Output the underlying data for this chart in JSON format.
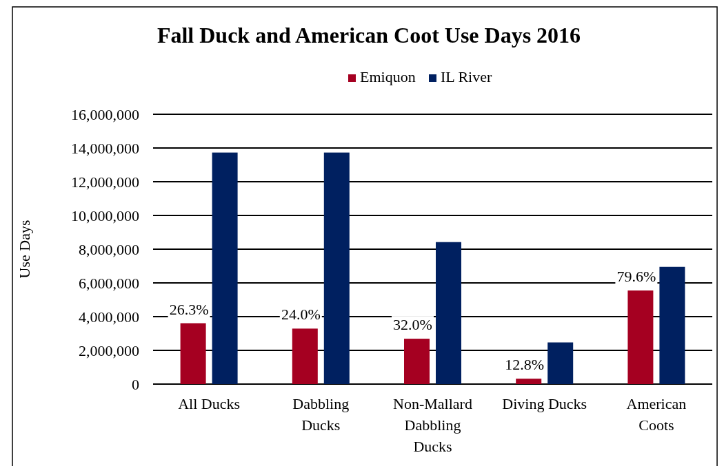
{
  "chart_data": {
    "type": "bar",
    "title": "Fall Duck and American Coot Use Days 2016",
    "ylabel": "Use Days",
    "categories": [
      "All Ducks",
      "Dabbling Ducks",
      "Non-Mallard Dabbling Ducks",
      "Diving Ducks",
      "American Coots"
    ],
    "series": [
      {
        "name": "Emiquon",
        "color": "#a50021",
        "values": [
          3610000,
          3290000,
          2690000,
          320000,
          5550000
        ]
      },
      {
        "name": "IL River",
        "color": "#002060",
        "values": [
          13730000,
          13730000,
          8420000,
          2470000,
          6950000
        ]
      }
    ],
    "ylim": [
      0,
      16000000
    ],
    "yticks": [
      {
        "value": 0,
        "label": "0"
      },
      {
        "value": 2000000,
        "label": "2,000,000"
      },
      {
        "value": 4000000,
        "label": "4,000,000"
      },
      {
        "value": 6000000,
        "label": "6,000,000"
      },
      {
        "value": 8000000,
        "label": "8,000,000"
      },
      {
        "value": 10000000,
        "label": "10,000,000"
      },
      {
        "value": 12000000,
        "label": "12,000,000"
      },
      {
        "value": 14000000,
        "label": "14,000,000"
      },
      {
        "value": 16000000,
        "label": "16,000,000"
      }
    ],
    "grid": "y",
    "legend": "top",
    "annotations": [
      {
        "text": "26.3%",
        "x": "All Ducks",
        "y": 3610000
      },
      {
        "text": "24.0%",
        "x": "Dabbling Ducks",
        "y": 3290000
      },
      {
        "text": "32.0%",
        "x": "Non-Mallard Dabbling Ducks",
        "y": 2690000
      },
      {
        "text": "12.8%",
        "x": "Diving Ducks",
        "y": 320000
      },
      {
        "text": "79.6%",
        "x": "American Coots",
        "y": 5550000
      }
    ]
  }
}
